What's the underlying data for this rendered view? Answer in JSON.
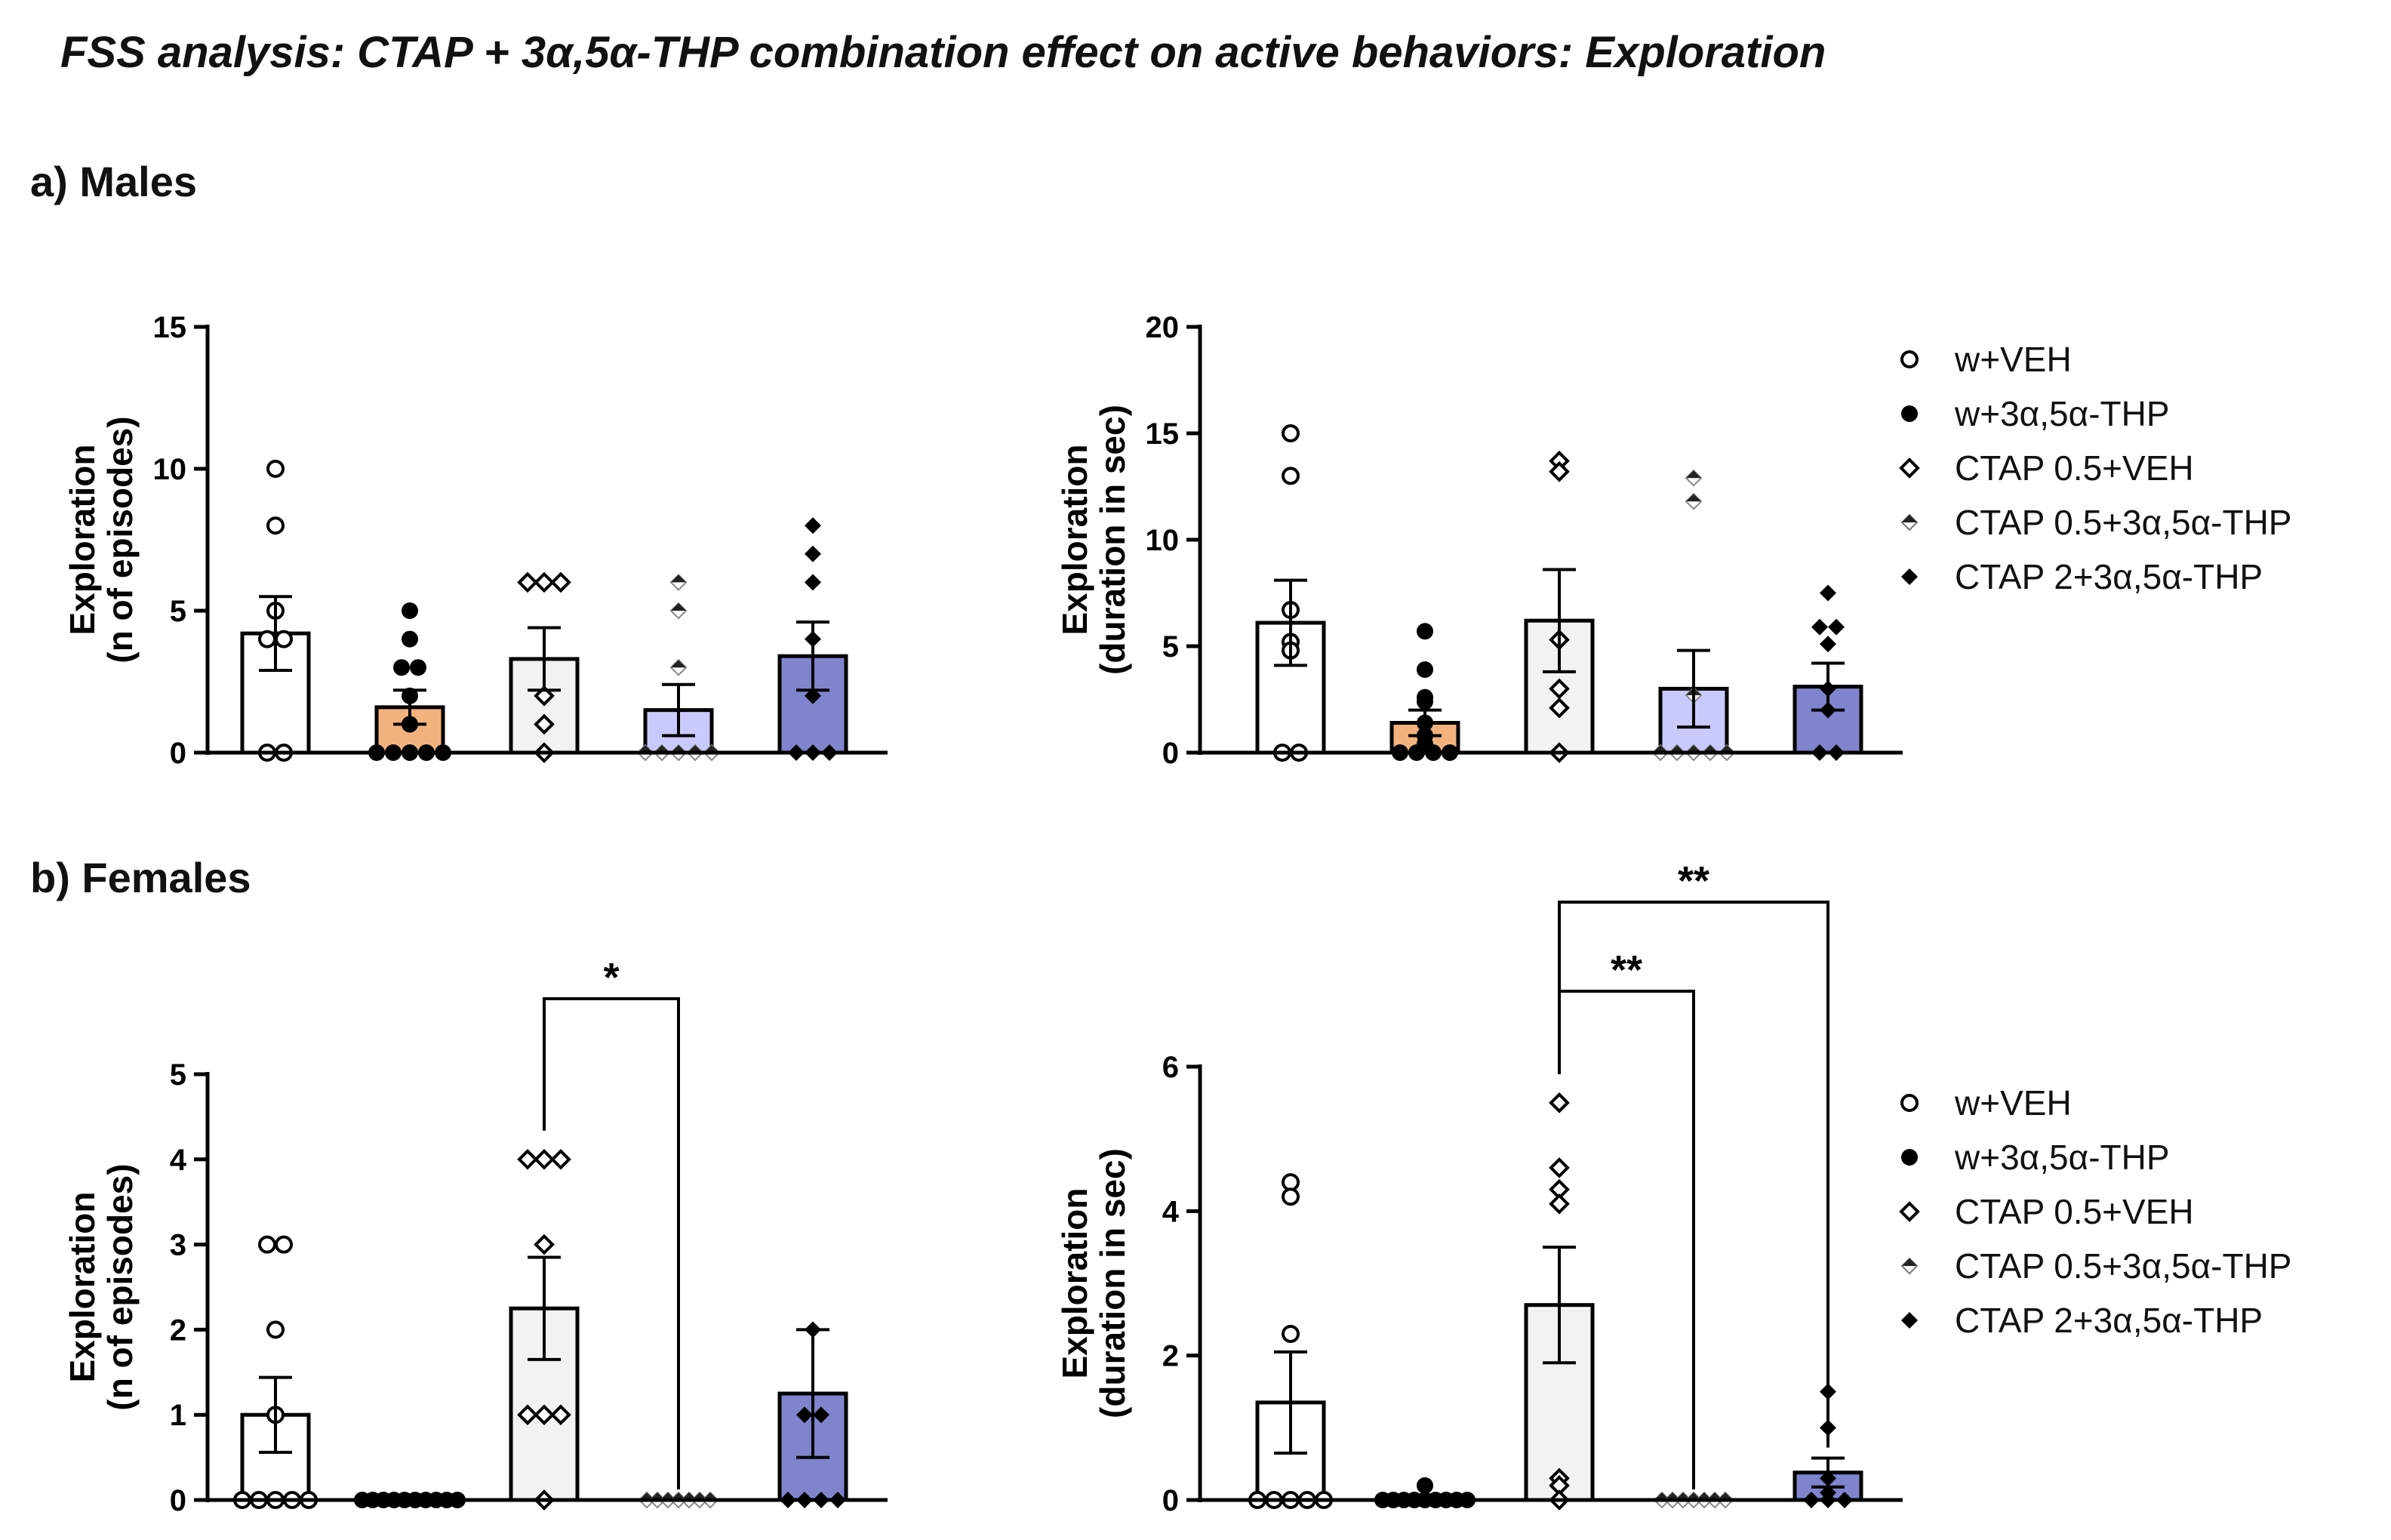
{
  "title": "FSS analysis: CTAP + 3α,5α-THP combination effect on active behaviors: Exploration",
  "sections": {
    "males": "a) Males",
    "females": "b) Females"
  },
  "legend": [
    {
      "label": "w+VEH",
      "marker": "circle-open"
    },
    {
      "label": "w+3α,5α-THP",
      "marker": "circle-filled"
    },
    {
      "label": "CTAP 0.5+VEH",
      "marker": "diamond-open"
    },
    {
      "label": "CTAP 0.5+3α,5α-THP",
      "marker": "diamond-half"
    },
    {
      "label": "CTAP 2+3α,5α-THP",
      "marker": "diamond-filled"
    }
  ],
  "colors": {
    "w_veh": "#ffffff",
    "w_thp": "#f2b27e",
    "ctap05_veh": "#f2f2f2",
    "ctap05_thp": "#c9c9fb",
    "ctap2_thp": "#7f84cc"
  },
  "chart_data": [
    {
      "type": "bar",
      "panel": "males-episodes",
      "ylabel": [
        "Exploration",
        "(n of episodes)"
      ],
      "ylim": [
        0,
        15
      ],
      "yticks": [
        0,
        5,
        10,
        15
      ],
      "categories": [
        "w+VEH",
        "w+3α,5α-THP",
        "CTAP 0.5+VEH",
        "CTAP 0.5+3α,5α-THP",
        "CTAP 2+3α,5α-THP"
      ],
      "values": [
        4.2,
        1.6,
        3.3,
        1.5,
        3.4
      ],
      "sem": [
        1.3,
        0.6,
        1.1,
        0.9,
        1.2
      ],
      "points": [
        [
          10,
          8,
          5,
          4,
          4,
          0,
          0
        ],
        [
          5,
          4,
          3,
          3,
          2,
          1,
          0,
          0,
          0,
          0,
          0
        ],
        [
          6,
          6,
          6,
          2,
          1,
          0
        ],
        [
          6,
          5,
          3,
          0,
          0,
          0,
          0,
          0
        ],
        [
          8,
          7,
          6,
          4,
          2,
          0,
          0,
          0
        ]
      ],
      "significance": []
    },
    {
      "type": "bar",
      "panel": "males-duration",
      "ylabel": [
        "Exploration",
        "(duration in sec)"
      ],
      "ylim": [
        0,
        20
      ],
      "yticks": [
        0,
        5,
        10,
        15,
        20
      ],
      "categories": [
        "w+VEH",
        "w+3α,5α-THP",
        "CTAP 0.5+VEH",
        "CTAP 0.5+3α,5α-THP",
        "CTAP 2+3α,5α-THP"
      ],
      "values": [
        6.1,
        1.4,
        6.2,
        3.0,
        3.1
      ],
      "sem": [
        2.0,
        0.6,
        2.4,
        1.8,
        1.1
      ],
      "points": [
        [
          15,
          13,
          6.7,
          5.2,
          4.8,
          0,
          0
        ],
        [
          5.7,
          3.9,
          2.6,
          2.4,
          1.4,
          0.8,
          0.4,
          0,
          0,
          0,
          0
        ],
        [
          13.7,
          13.2,
          5.3,
          3,
          2.1,
          0
        ],
        [
          12.9,
          11.8,
          2.7,
          0,
          0,
          0,
          0,
          0
        ],
        [
          7.5,
          5.9,
          5.9,
          5.1,
          3,
          2,
          0,
          0
        ]
      ],
      "significance": []
    },
    {
      "type": "bar",
      "panel": "females-episodes",
      "ylabel": [
        "Exploration",
        "(n of episodes)"
      ],
      "ylim": [
        0,
        5
      ],
      "yticks": [
        0,
        1,
        2,
        3,
        4,
        5
      ],
      "categories": [
        "w+VEH",
        "w+3α,5α-THP",
        "CTAP 0.5+VEH",
        "CTAP 0.5+3α,5α-THP",
        "CTAP 2+3α,5α-THP"
      ],
      "values": [
        1.0,
        0.0,
        2.25,
        0.0,
        1.25
      ],
      "sem": [
        0.44,
        0.0,
        0.6,
        0.0,
        0.75
      ],
      "points": [
        [
          3,
          3,
          2,
          1,
          0,
          0,
          0,
          0,
          0
        ],
        [
          0,
          0,
          0,
          0,
          0,
          0,
          0,
          0,
          0,
          0
        ],
        [
          4,
          4,
          4,
          3,
          1,
          1,
          1,
          0
        ],
        [
          0,
          0,
          0,
          0,
          0,
          0,
          0
        ],
        [
          2,
          1,
          1,
          0,
          0,
          0,
          0
        ]
      ],
      "significance": [
        {
          "from": 2,
          "to": 3,
          "label": "*",
          "level": 1
        }
      ]
    },
    {
      "type": "bar",
      "panel": "females-duration",
      "ylabel": [
        "Exploration",
        "(duration in sec)"
      ],
      "ylim": [
        0,
        6
      ],
      "yticks": [
        0,
        2,
        4,
        6
      ],
      "categories": [
        "w+VEH",
        "w+3α,5α-THP",
        "CTAP 0.5+VEH",
        "CTAP 0.5+3α,5α-THP",
        "CTAP 2+3α,5α-THP"
      ],
      "values": [
        1.35,
        0.03,
        2.7,
        0.0,
        0.38
      ],
      "sem": [
        0.7,
        0.03,
        0.8,
        0.0,
        0.2
      ],
      "points": [
        [
          4.4,
          4.2,
          2.3,
          0,
          0,
          0,
          0,
          0
        ],
        [
          0.2,
          0,
          0,
          0,
          0,
          0,
          0,
          0,
          0,
          0
        ],
        [
          5.5,
          4.6,
          4.3,
          4.1,
          0.3,
          0.2,
          0
        ],
        [
          0,
          0,
          0,
          0,
          0,
          0,
          0
        ],
        [
          1.5,
          1.0,
          0.3,
          0.1,
          0,
          0,
          0
        ]
      ],
      "significance": [
        {
          "from": 2,
          "to": 3,
          "label": "**",
          "level": 1
        },
        {
          "from": 2,
          "to": 4,
          "label": "**",
          "level": 2
        }
      ]
    }
  ]
}
